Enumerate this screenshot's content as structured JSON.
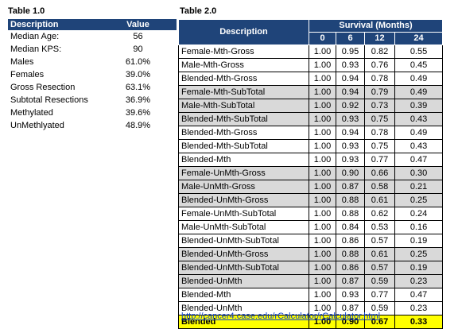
{
  "table1": {
    "title": "Table 1.0",
    "header": [
      "Description",
      "Value"
    ],
    "rows": [
      [
        "Median Age:",
        "56"
      ],
      [
        "Median KPS:",
        "90"
      ],
      [
        "Males",
        "61.0%"
      ],
      [
        "Females",
        "39.0%"
      ],
      [
        "Gross Resection",
        "63.1%"
      ],
      [
        "Subtotal Resections",
        "36.9%"
      ],
      [
        "Methylated",
        "39.6%"
      ],
      [
        "UnMethlyated",
        "48.9%"
      ]
    ]
  },
  "table2": {
    "title": "Table 2.0",
    "header": {
      "description": "Description",
      "group": "Survival (Months)",
      "columns": [
        "0",
        "6",
        "12",
        "24"
      ]
    },
    "rows": [
      {
        "cells": [
          "Female-Mth-Gross",
          "1.00",
          "0.95",
          "0.82",
          "0.55"
        ],
        "fill": "#ffffff"
      },
      {
        "cells": [
          "Male-Mth-Gross",
          "1.00",
          "0.93",
          "0.76",
          "0.45"
        ],
        "fill": "#ffffff"
      },
      {
        "cells": [
          "Blended-Mth-Gross",
          "1.00",
          "0.94",
          "0.78",
          "0.49"
        ],
        "fill": "#ffffff"
      },
      {
        "cells": [
          "Female-Mth-SubTotal",
          "1.00",
          "0.94",
          "0.79",
          "0.49"
        ],
        "fill": "#d9d9d9"
      },
      {
        "cells": [
          "Male-Mth-SubTotal",
          "1.00",
          "0.92",
          "0.73",
          "0.39"
        ],
        "fill": "#d9d9d9"
      },
      {
        "cells": [
          "Blended-Mth-SubTotal",
          "1.00",
          "0.93",
          "0.75",
          "0.43"
        ],
        "fill": "#d9d9d9"
      },
      {
        "cells": [
          "Blended-Mth-Gross",
          "1.00",
          "0.94",
          "0.78",
          "0.49"
        ],
        "fill": "#ffffff"
      },
      {
        "cells": [
          "Blended-Mth-SubTotal",
          "1.00",
          "0.93",
          "0.75",
          "0.43"
        ],
        "fill": "#ffffff"
      },
      {
        "cells": [
          "Blended-Mth",
          "1.00",
          "0.93",
          "0.77",
          "0.47"
        ],
        "fill": "#ffffff"
      },
      {
        "cells": [
          "Female-UnMth-Gross",
          "1.00",
          "0.90",
          "0.66",
          "0.30"
        ],
        "fill": "#d9d9d9"
      },
      {
        "cells": [
          "Male-UnMth-Gross",
          "1.00",
          "0.87",
          "0.58",
          "0.21"
        ],
        "fill": "#d9d9d9"
      },
      {
        "cells": [
          "Blended-UnMth-Gross",
          "1.00",
          "0.88",
          "0.61",
          "0.25"
        ],
        "fill": "#d9d9d9"
      },
      {
        "cells": [
          "Female-UnMth-SubTotal",
          "1.00",
          "0.88",
          "0.62",
          "0.24"
        ],
        "fill": "#ffffff"
      },
      {
        "cells": [
          "Male-UnMth-SubTotal",
          "1.00",
          "0.84",
          "0.53",
          "0.16"
        ],
        "fill": "#ffffff"
      },
      {
        "cells": [
          "Blended-UnMth-SubTotal",
          "1.00",
          "0.86",
          "0.57",
          "0.19"
        ],
        "fill": "#ffffff"
      },
      {
        "cells": [
          "Blended-UnMth-Gross",
          "1.00",
          "0.88",
          "0.61",
          "0.25"
        ],
        "fill": "#d9d9d9"
      },
      {
        "cells": [
          "Blended-UnMth-SubTotal",
          "1.00",
          "0.86",
          "0.57",
          "0.19"
        ],
        "fill": "#d9d9d9"
      },
      {
        "cells": [
          "Blended-UnMth",
          "1.00",
          "0.87",
          "0.59",
          "0.23"
        ],
        "fill": "#d9d9d9"
      },
      {
        "cells": [
          "Blended-Mth",
          "1.00",
          "0.93",
          "0.77",
          "0.47"
        ],
        "fill": "#ffffff"
      },
      {
        "cells": [
          "Blended-UnMth",
          "1.00",
          "0.87",
          "0.59",
          "0.23"
        ],
        "fill": "#ffffff"
      },
      {
        "cells": [
          "Blended",
          "1.00",
          "0.90",
          "0.67",
          "0.33"
        ],
        "fill": "#ffff00",
        "bold": true
      }
    ],
    "link": "http://cancer4.case.edu/rCalculator/rCalculator.html"
  }
}
